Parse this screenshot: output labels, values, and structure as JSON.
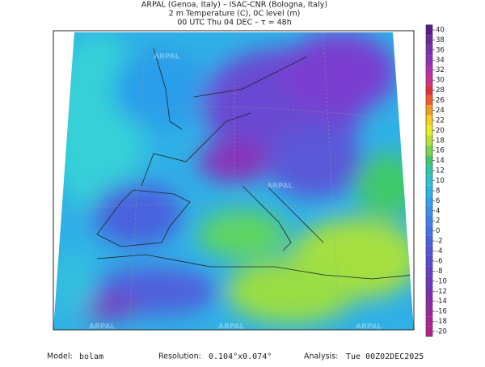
{
  "header": {
    "line1": "ARPAL (Genoa, Italy)  –  ISAC-CNR (Bologna, Italy)",
    "line2": "2 m Temperature (C), 0C level (m)",
    "line3": "00 UTC Thu 04 DEC  –  τ = 48h"
  },
  "watermark": "ARPAL",
  "colorbar": {
    "ticks": [
      40,
      38,
      36,
      34,
      32,
      30,
      28,
      26,
      24,
      22,
      20,
      18,
      16,
      14,
      12,
      10,
      8,
      6,
      4,
      2,
      0,
      -2,
      -4,
      -6,
      -8,
      -10,
      -12,
      -14,
      -16,
      -18,
      -20
    ],
    "colors": [
      "#5a1a8a",
      "#6a2a9e",
      "#7a2fb0",
      "#9030b8",
      "#b030b0",
      "#d0308c",
      "#e03040",
      "#f05a28",
      "#f39a20",
      "#f5d020",
      "#e8ee20",
      "#b6e23a",
      "#7ad64a",
      "#3fc96a",
      "#2ec8a8",
      "#2bc4cf",
      "#28b6e6",
      "#2fa4ee",
      "#3a92ee",
      "#4182ea",
      "#4472e4",
      "#4a62de",
      "#5256d8",
      "#5a4ad2",
      "#6440c8",
      "#6e38c0",
      "#7a30b6",
      "#8a2aac",
      "#9a26a2",
      "#a82498",
      "#b6228c"
    ]
  },
  "footer": {
    "model_label": "Model:",
    "model": "bolam",
    "resolution_label": "Resolution:",
    "resolution": "0.104°x0.074°",
    "analysis_label": "Analysis:",
    "analysis": "Tue 00Z02DEC2025"
  }
}
